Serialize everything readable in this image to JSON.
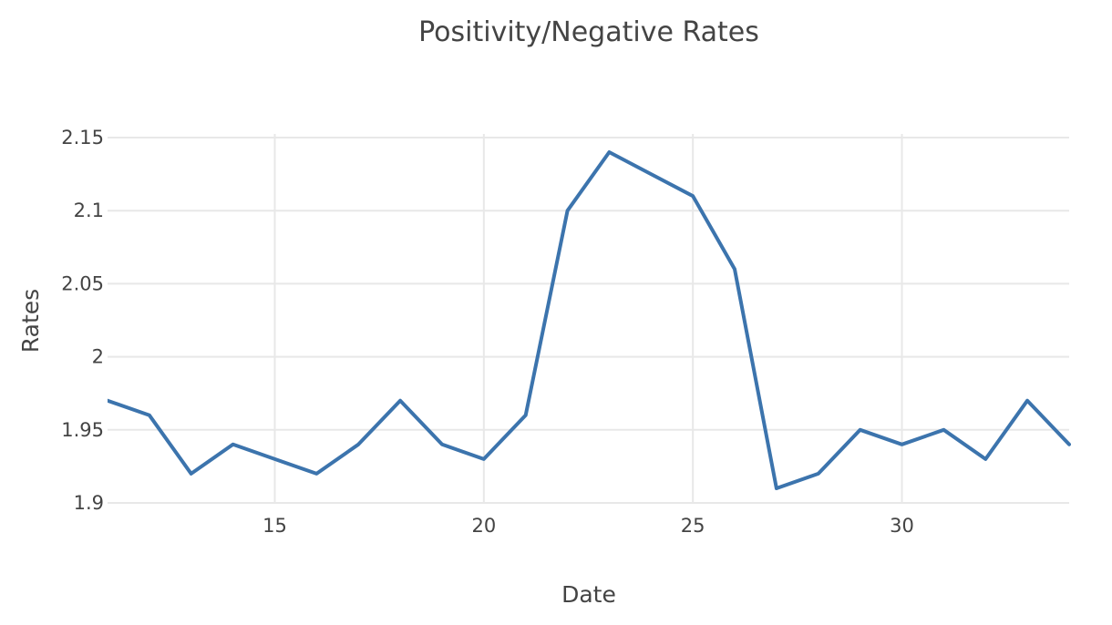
{
  "chart_data": {
    "type": "line",
    "title": "Positivity/Negative Rates",
    "xlabel": "Date",
    "ylabel": "Rates",
    "xlim": [
      11,
      34
    ],
    "ylim": [
      1.9,
      2.15
    ],
    "x_ticks": [
      15,
      20,
      25,
      30
    ],
    "x_tick_labels": [
      "15",
      "20",
      "25",
      "30"
    ],
    "y_ticks": [
      1.9,
      1.95,
      2,
      2.05,
      2.1,
      2.15
    ],
    "y_tick_labels": [
      "1.9",
      "1.95",
      "2",
      "2.05",
      "2.1",
      "2.15"
    ],
    "grid": true,
    "legend": "none",
    "series": [
      {
        "color": "#3c74ad",
        "x": [
          11,
          12,
          13,
          14,
          15,
          16,
          17,
          18,
          19,
          20,
          21,
          22,
          23,
          24,
          25,
          26,
          27,
          28,
          29,
          30,
          31,
          32,
          33,
          34
        ],
        "y": [
          1.97,
          1.96,
          1.92,
          1.94,
          1.93,
          1.92,
          1.94,
          1.97,
          1.94,
          1.93,
          1.96,
          2.1,
          2.14,
          2.125,
          2.11,
          2.06,
          1.91,
          1.92,
          1.95,
          1.94,
          1.95,
          1.93,
          1.97,
          1.94
        ]
      }
    ]
  }
}
